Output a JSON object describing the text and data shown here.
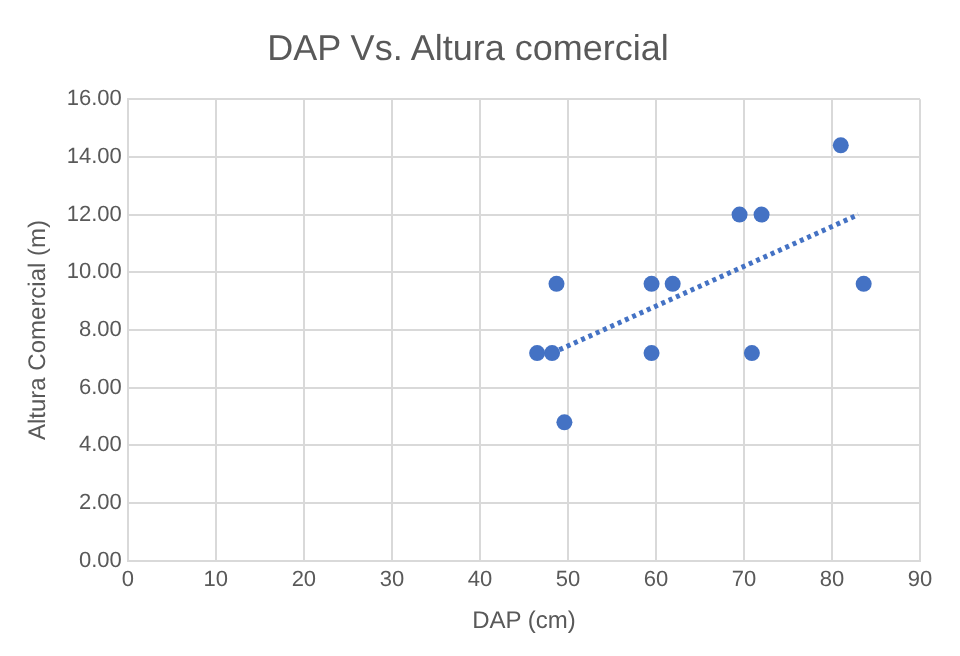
{
  "chart_data": {
    "type": "scatter",
    "title": "DAP Vs. Altura comercial",
    "xlabel": "DAP (cm)",
    "ylabel": "Altura Comercial (m)",
    "xlim": [
      0,
      90
    ],
    "xticks": [
      0,
      10,
      20,
      30,
      40,
      50,
      60,
      70,
      80,
      90
    ],
    "ylim": [
      0,
      16
    ],
    "yticks": [
      {
        "value": 0,
        "label": "0.00"
      },
      {
        "value": 2,
        "label": "2.00"
      },
      {
        "value": 4,
        "label": "4.00"
      },
      {
        "value": 6,
        "label": "6.00"
      },
      {
        "value": 8,
        "label": "8.00"
      },
      {
        "value": 10,
        "label": "10.00"
      },
      {
        "value": 12,
        "label": "12.00"
      },
      {
        "value": 14,
        "label": "14.00"
      },
      {
        "value": 16,
        "label": "16.00"
      }
    ],
    "grid": true,
    "legend": false,
    "marker": "circle",
    "series": [
      {
        "type": "scatter",
        "color": "#4472c4",
        "x": [
          46.5,
          48.2,
          48.7,
          49.6,
          59.5,
          59.5,
          61.9,
          69.5,
          72.0,
          70.9,
          81.0,
          83.6
        ],
        "values": [
          7.2,
          7.2,
          9.6,
          4.8,
          9.6,
          7.2,
          9.6,
          12.0,
          12.0,
          7.2,
          14.4,
          9.6
        ]
      },
      {
        "type": "line",
        "color": "#4472c4",
        "line_style": "dotted",
        "marker": "none",
        "x": [
          48.2,
          83.0
        ],
        "values": [
          7.2,
          12.0
        ]
      }
    ]
  }
}
